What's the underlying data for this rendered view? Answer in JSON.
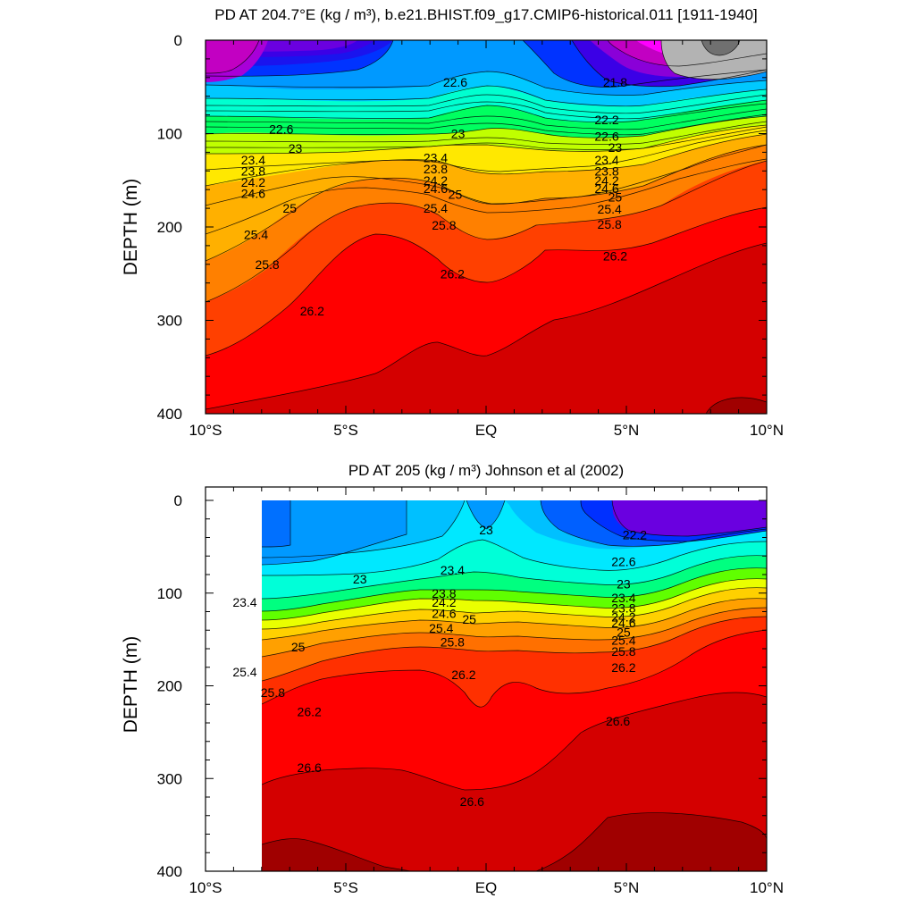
{
  "chart_data": [
    {
      "type": "contour",
      "title": "PD AT 204.7°E (kg / m³), b.e21.BHIST.f09_g17.CMIP6-historical.011 [1911-1940]",
      "ylabel": "DEPTH (m)",
      "xlabel": "",
      "x_ticks": [
        "10°S",
        "5°S",
        "EQ",
        "5°N",
        "10°N"
      ],
      "y_ticks": [
        "0",
        "100",
        "200",
        "300",
        "400"
      ],
      "xlim": [
        -10,
        10
      ],
      "ylim": [
        400,
        0
      ],
      "contour_interval": 0.2,
      "contour_levels_labeled": [
        "21.8",
        "22.2",
        "22.6",
        "23",
        "23.4",
        "23.8",
        "24.2",
        "24.6",
        "25",
        "25.4",
        "25.8",
        "26.2"
      ],
      "labels": [
        {
          "text": "22.6",
          "lat": -7.3,
          "depth": 95
        },
        {
          "text": "23",
          "lat": -6.8,
          "depth": 116
        },
        {
          "text": "23.4",
          "lat": -8.3,
          "depth": 128
        },
        {
          "text": "23.8",
          "lat": -8.3,
          "depth": 140
        },
        {
          "text": "24.2",
          "lat": -8.3,
          "depth": 152
        },
        {
          "text": "24.6",
          "lat": -8.3,
          "depth": 164
        },
        {
          "text": "25",
          "lat": -7.0,
          "depth": 180
        },
        {
          "text": "25.4",
          "lat": -8.2,
          "depth": 208
        },
        {
          "text": "25.8",
          "lat": -7.8,
          "depth": 240
        },
        {
          "text": "26.2",
          "lat": -6.2,
          "depth": 290
        },
        {
          "text": "22.6",
          "lat": -1.1,
          "depth": 45
        },
        {
          "text": "23",
          "lat": -1.0,
          "depth": 100
        },
        {
          "text": "23.4",
          "lat": -1.8,
          "depth": 126
        },
        {
          "text": "23.8",
          "lat": -1.8,
          "depth": 138
        },
        {
          "text": "24.2",
          "lat": -1.8,
          "depth": 150
        },
        {
          "text": "24.6",
          "lat": -1.8,
          "depth": 159
        },
        {
          "text": "25",
          "lat": -1.1,
          "depth": 165
        },
        {
          "text": "25.4",
          "lat": -1.8,
          "depth": 180
        },
        {
          "text": "25.8",
          "lat": -1.5,
          "depth": 198
        },
        {
          "text": "26.2",
          "lat": -1.2,
          "depth": 250
        },
        {
          "text": "21.8",
          "lat": 4.6,
          "depth": 45
        },
        {
          "text": "22.2",
          "lat": 4.3,
          "depth": 85
        },
        {
          "text": "22.6",
          "lat": 4.3,
          "depth": 103
        },
        {
          "text": "23",
          "lat": 4.6,
          "depth": 115
        },
        {
          "text": "23.4",
          "lat": 4.3,
          "depth": 128
        },
        {
          "text": "23.8",
          "lat": 4.3,
          "depth": 140
        },
        {
          "text": "24.2",
          "lat": 4.3,
          "depth": 150
        },
        {
          "text": "24.6",
          "lat": 4.3,
          "depth": 159
        },
        {
          "text": "25",
          "lat": 4.6,
          "depth": 168
        },
        {
          "text": "25.4",
          "lat": 4.4,
          "depth": 181
        },
        {
          "text": "25.8",
          "lat": 4.4,
          "depth": 197
        },
        {
          "text": "26.2",
          "lat": 4.6,
          "depth": 231
        }
      ],
      "colors": [
        "#c200c2",
        "#6a00e0",
        "#0033ff",
        "#0099ff",
        "#00e0ff",
        "#00ff99",
        "#ffff00",
        "#ff8000",
        "#ff4000",
        "#ff0000",
        "#d40000",
        "#a00000",
        "#999999"
      ]
    },
    {
      "type": "contour",
      "title": "PD AT 205 (kg / m³) Johnson et al (2002)",
      "ylabel": "DEPTH (m)",
      "xlabel": "",
      "x_ticks": [
        "10°S",
        "5°S",
        "EQ",
        "5°N",
        "10°N"
      ],
      "y_ticks": [
        "0",
        "100",
        "200",
        "300",
        "400"
      ],
      "xlim": [
        -10,
        10
      ],
      "ylim": [
        400,
        0
      ],
      "data_xrange": [
        -8,
        10
      ],
      "contour_interval": 0.2,
      "contour_levels_labeled": [
        "22.2",
        "22.6",
        "23",
        "23.4",
        "23.8",
        "24.2",
        "24.6",
        "25",
        "25.4",
        "25.8",
        "26.2",
        "26.6"
      ],
      "labels": [
        {
          "text": "23.4",
          "lat": -8.6,
          "depth": 110
        },
        {
          "text": "25",
          "lat": -6.7,
          "depth": 158
        },
        {
          "text": "25.4",
          "lat": -8.6,
          "depth": 185
        },
        {
          "text": "25.8",
          "lat": -7.6,
          "depth": 207
        },
        {
          "text": "26.2",
          "lat": -6.3,
          "depth": 228
        },
        {
          "text": "26.6",
          "lat": -6.3,
          "depth": 288
        },
        {
          "text": "23",
          "lat": -4.5,
          "depth": 85
        },
        {
          "text": "23",
          "lat": 0.0,
          "depth": 32
        },
        {
          "text": "23.4",
          "lat": -1.2,
          "depth": 75
        },
        {
          "text": "23.8",
          "lat": -1.5,
          "depth": 100
        },
        {
          "text": "24.2",
          "lat": -1.5,
          "depth": 110
        },
        {
          "text": "24.6",
          "lat": -1.5,
          "depth": 122
        },
        {
          "text": "25",
          "lat": -0.6,
          "depth": 128
        },
        {
          "text": "25.4",
          "lat": -1.6,
          "depth": 138
        },
        {
          "text": "25.8",
          "lat": -1.2,
          "depth": 153
        },
        {
          "text": "26.2",
          "lat": -0.8,
          "depth": 188
        },
        {
          "text": "26.6",
          "lat": -0.5,
          "depth": 325
        },
        {
          "text": "22.2",
          "lat": 5.3,
          "depth": 37
        },
        {
          "text": "22.6",
          "lat": 4.9,
          "depth": 66
        },
        {
          "text": "23",
          "lat": 4.9,
          "depth": 90
        },
        {
          "text": "23.4",
          "lat": 4.9,
          "depth": 105
        },
        {
          "text": "23.8",
          "lat": 4.9,
          "depth": 116
        },
        {
          "text": "24.2",
          "lat": 4.9,
          "depth": 126
        },
        {
          "text": "24.6",
          "lat": 4.9,
          "depth": 132
        },
        {
          "text": "25",
          "lat": 4.9,
          "depth": 142
        },
        {
          "text": "25.4",
          "lat": 4.9,
          "depth": 151
        },
        {
          "text": "25.8",
          "lat": 4.9,
          "depth": 163
        },
        {
          "text": "26.2",
          "lat": 4.9,
          "depth": 180
        },
        {
          "text": "26.6",
          "lat": 4.7,
          "depth": 238
        }
      ],
      "colors": [
        "#6a00e0",
        "#0033ff",
        "#0099ff",
        "#00ccff",
        "#00ffdd",
        "#00ff66",
        "#ffff00",
        "#ff8000",
        "#ff4000",
        "#ff0000",
        "#d40000",
        "#a00000"
      ]
    }
  ]
}
